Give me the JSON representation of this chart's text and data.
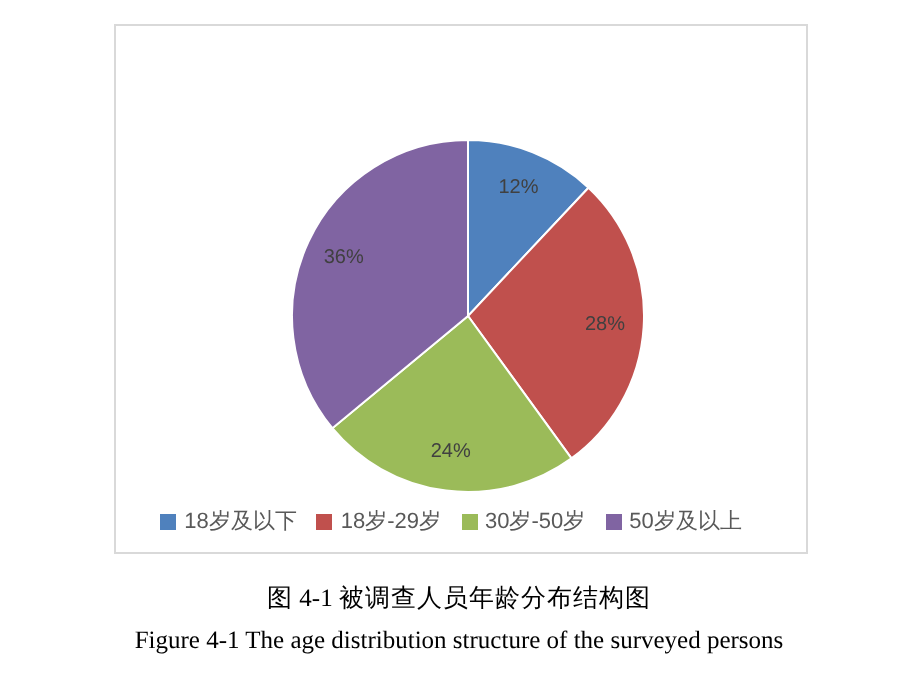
{
  "chart_data": {
    "type": "pie",
    "categories": [
      "18岁及以下",
      "18岁-29岁",
      "30岁-50岁",
      "50岁及以上"
    ],
    "values": [
      12,
      28,
      24,
      36
    ],
    "value_labels": [
      "12%",
      "28%",
      "24%",
      "36%"
    ],
    "colors": [
      "#4f81bd",
      "#c0504d",
      "#9bbb59",
      "#8064a2"
    ],
    "legend": "bottom",
    "annotations": [
      "图 4-1  被调查人员年龄分布结构图",
      "Figure 4-1 The age distribution structure of the surveyed persons"
    ]
  }
}
